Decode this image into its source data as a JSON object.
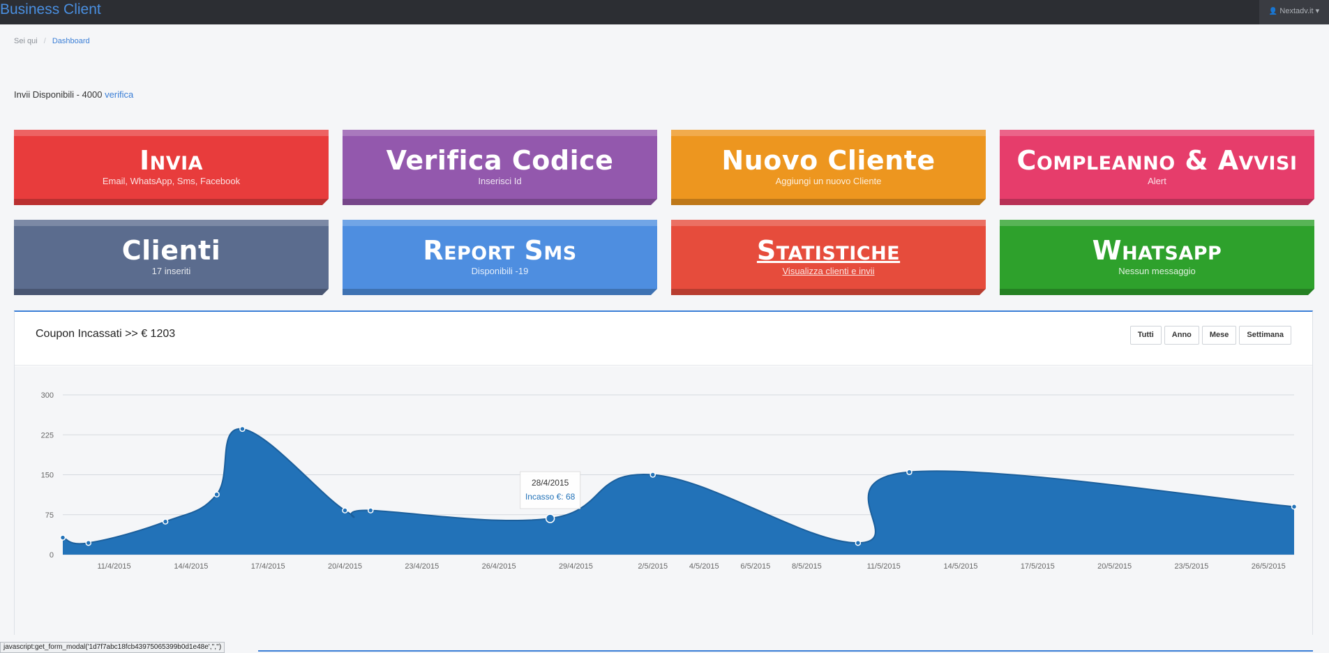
{
  "app": {
    "brand": "Business Client",
    "user": "Nextadv.it"
  },
  "breadcrumb": {
    "home": "Sei qui",
    "current": "Dashboard"
  },
  "credits": {
    "text": "Invii Disponibili - 4000",
    "link": "verifica"
  },
  "tiles": [
    {
      "title": "Invia",
      "subtitle": "Email, WhatsApp, Sms, Facebook",
      "color": "#e83c3c"
    },
    {
      "title": "Verifica Codice",
      "subtitle": "Inserisci Id",
      "color": "#9358ad"
    },
    {
      "title": "Nuovo Cliente",
      "subtitle": "Aggiungi un nuovo Cliente",
      "color": "#ed961f"
    },
    {
      "title": "Compleanno & Avvisi",
      "subtitle": "Alert",
      "color": "#e63d6b"
    },
    {
      "title": "Clienti",
      "subtitle": "17 inseriti",
      "color": "#5b6c8e"
    },
    {
      "title": "Report Sms",
      "subtitle": "Disponibili -19",
      "color": "#4e8ee0"
    },
    {
      "title": "Statistiche",
      "subtitle": "Visualizza clienti e invii",
      "color": "#e64c3c"
    },
    {
      "title": "Whatsapp",
      "subtitle": "Nessun messaggio",
      "color": "#2ea12c"
    }
  ],
  "chart": {
    "title": "Coupon Incassati >> € 1203",
    "buttons": [
      "Tutti",
      "Anno",
      "Mese",
      "Settimana"
    ],
    "tooltip": {
      "date": "28/4/2015",
      "label": "Incasso €: 68"
    }
  },
  "chart_data": {
    "type": "area",
    "x": [
      "9/4/2015",
      "10/4/2015",
      "13/4/2015",
      "15/4/2015",
      "16/4/2015",
      "20/4/2015",
      "21/4/2015",
      "28/4/2015",
      "2/5/2015",
      "10/5/2015",
      "12/5/2015",
      "27/5/2015"
    ],
    "series": [
      {
        "values": [
          32,
          22,
          62,
          113,
          236,
          83,
          83,
          68,
          150,
          22,
          155,
          90
        ]
      }
    ],
    "ylim": [
      0,
      300
    ],
    "yticks": [
      0,
      75,
      150,
      225,
      300
    ],
    "xticks": [
      "11/4/2015",
      "14/4/2015",
      "17/4/2015",
      "20/4/2015",
      "23/4/2015",
      "26/4/2015",
      "29/4/2015",
      "2/5/2015",
      "4/5/2015",
      "6/5/2015",
      "8/5/2015",
      "11/5/2015",
      "14/5/2015",
      "17/5/2015",
      "20/5/2015",
      "23/5/2015",
      "26/5/2015"
    ],
    "grid": true,
    "fill_color": "#2272b8"
  },
  "status_bar": "javascript:get_form_modal('1d7f7abc18fcb43975065399b0d1e48e','','')"
}
